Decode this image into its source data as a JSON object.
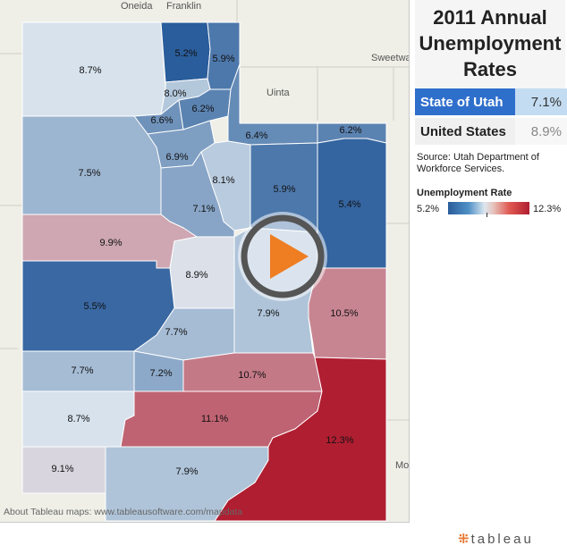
{
  "title": "2011 Annual Unemployment Rates",
  "title_lines": [
    "2011 Annual",
    "Unemployment",
    "Rates"
  ],
  "state_label": "State of Utah",
  "state_value": "7.1%",
  "us_label": "United States",
  "us_value": "8.9%",
  "source": "Source: Utah Department of Workforce Services.",
  "legend": {
    "title": "Unemployment Rate",
    "min": "5.2%",
    "max": "12.3%",
    "colors": [
      "#2a5d9b",
      "#dce6ee",
      "#b01e31"
    ]
  },
  "map_credit": "About Tableau maps: www.tableausoftware.com/mapdata",
  "logo": {
    "plus": "⁜",
    "text": "tableau"
  },
  "background_places": [
    "Oneida",
    "Franklin",
    "Sweetwater",
    "Uinta",
    "Mo"
  ],
  "counties": [
    {
      "label": "8.7%",
      "rate": 8.7
    },
    {
      "label": "5.2%",
      "rate": 5.2
    },
    {
      "label": "5.9%",
      "rate": 5.9
    },
    {
      "label": "8.0%",
      "rate": 8.0
    },
    {
      "label": "6.6%",
      "rate": 6.6
    },
    {
      "label": "6.2%",
      "rate": 6.2
    },
    {
      "label": "6.4%",
      "rate": 6.4
    },
    {
      "label": "6.2%",
      "rate": 6.2
    },
    {
      "label": "6.9%",
      "rate": 6.9
    },
    {
      "label": "7.5%",
      "rate": 7.5
    },
    {
      "label": "8.1%",
      "rate": 8.1
    },
    {
      "label": "5.9%",
      "rate": 5.9
    },
    {
      "label": "5.4%",
      "rate": 5.4
    },
    {
      "label": "7.1%",
      "rate": 7.1
    },
    {
      "label": "9.9%",
      "rate": 9.9
    },
    {
      "label": "8.9%",
      "rate": 8.9
    },
    {
      "label": "5.5%",
      "rate": 5.5
    },
    {
      "label": "7.9%",
      "rate": 7.9
    },
    {
      "label": "10.5%",
      "rate": 10.5
    },
    {
      "label": "7.7%",
      "rate": 7.7
    },
    {
      "label": "7.7%",
      "rate": 7.7
    },
    {
      "label": "7.2%",
      "rate": 7.2
    },
    {
      "label": "10.7%",
      "rate": 10.7
    },
    {
      "label": "8.7%",
      "rate": 8.7
    },
    {
      "label": "11.1%",
      "rate": 11.1
    },
    {
      "label": "12.3%",
      "rate": 12.3
    },
    {
      "label": "9.1%",
      "rate": 9.1
    },
    {
      "label": "7.9%",
      "rate": 7.9
    }
  ]
}
